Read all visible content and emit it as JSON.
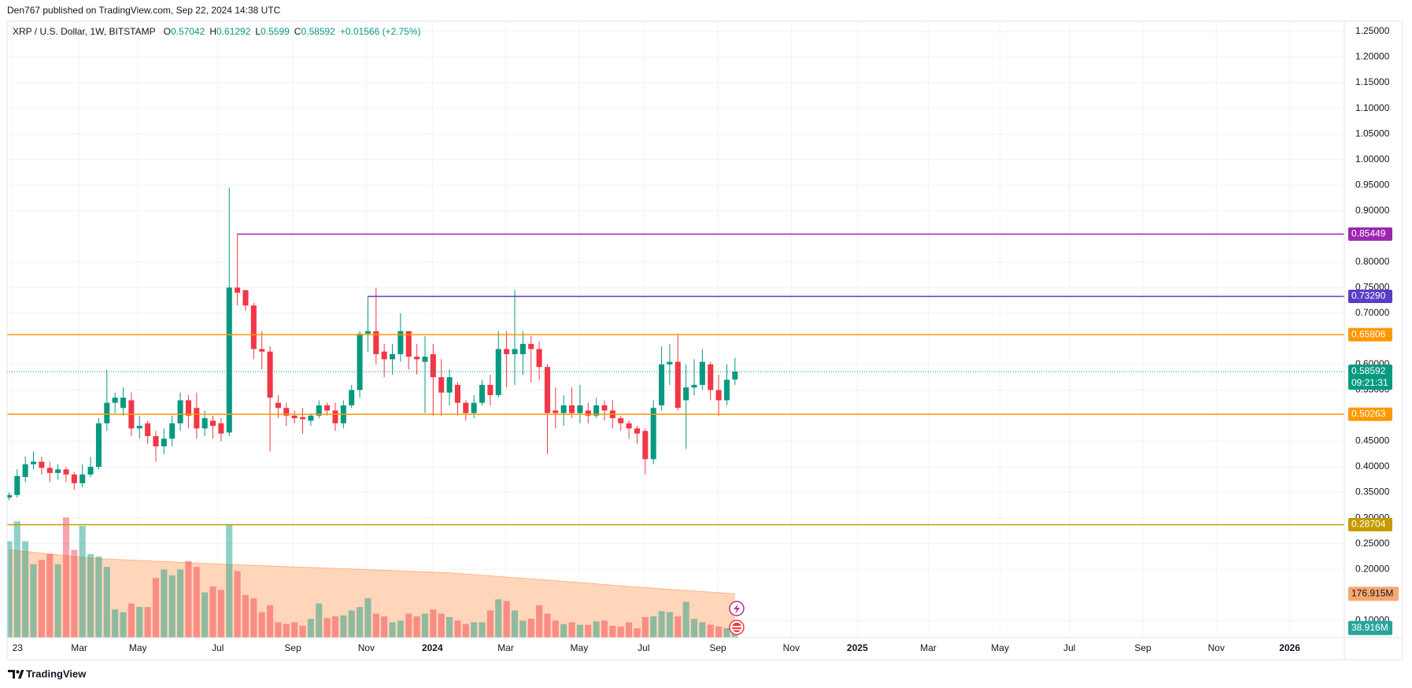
{
  "header": {
    "published": "Den767 published on TradingView.com, Sep 22, 2024 14:38 UTC"
  },
  "legend": {
    "symbol": "XRP / U.S. Dollar, 1W, BITSTAMP",
    "letters": [
      "O",
      "H",
      "L",
      "C"
    ],
    "change": "+0.01566 (+2.75%)"
  },
  "footer": {
    "brand": "TradingView"
  },
  "chart_data": {
    "type": "candlestick",
    "up_color": "#089981",
    "down_color": "#f23645",
    "grid": true,
    "xlim": [
      -0.235,
      163.7
    ],
    "xticks": [
      {
        "value": 0.4,
        "label": "23"
      },
      {
        "value": 8.6,
        "label": "Mar"
      },
      {
        "value": 15.8,
        "label": "May"
      },
      {
        "value": 25.6,
        "label": "Jul"
      },
      {
        "value": 34.8,
        "label": "Sep"
      },
      {
        "value": 43.8,
        "label": "Nov"
      },
      {
        "value": 51.9,
        "label": "2024"
      },
      {
        "value": 60.9,
        "label": "Mar"
      },
      {
        "value": 69.9,
        "label": "May"
      },
      {
        "value": 77.8,
        "label": "Jul"
      },
      {
        "value": 86.9,
        "label": "Sep"
      },
      {
        "value": 95.9,
        "label": "Nov"
      },
      {
        "value": 104.0,
        "label": "2025"
      },
      {
        "value": 112.7,
        "label": "Mar"
      },
      {
        "value": 121.5,
        "label": "May"
      },
      {
        "value": 130.0,
        "label": "Jul"
      },
      {
        "value": 139.0,
        "label": "Sep"
      },
      {
        "value": 148.0,
        "label": "Nov"
      },
      {
        "value": 157.0,
        "label": "2026"
      }
    ],
    "ylim": [
      0.0665,
      1.27
    ],
    "yticks": [
      {
        "value": 1.25,
        "label": "1.25000"
      },
      {
        "value": 1.2,
        "label": "1.20000"
      },
      {
        "value": 1.15,
        "label": "1.15000"
      },
      {
        "value": 1.1,
        "label": "1.10000"
      },
      {
        "value": 1.05,
        "label": "1.05000"
      },
      {
        "value": 1.0,
        "label": "1.00000"
      },
      {
        "value": 0.95,
        "label": "0.95000"
      },
      {
        "value": 0.9,
        "label": "0.90000"
      },
      {
        "value": 0.8,
        "label": "0.80000"
      },
      {
        "value": 0.75,
        "label": "0.75000"
      },
      {
        "value": 0.7,
        "label": "0.70000"
      },
      {
        "value": 0.6,
        "label": "0.60000"
      },
      {
        "value": 0.55,
        "label": "0.55000"
      },
      {
        "value": 0.45,
        "label": "0.45000"
      },
      {
        "value": 0.4,
        "label": "0.40000"
      },
      {
        "value": 0.35,
        "label": "0.35000"
      },
      {
        "value": 0.3,
        "label": "0.30000"
      },
      {
        "value": 0.25,
        "label": "0.25000"
      },
      {
        "value": 0.2,
        "label": "0.20000"
      },
      {
        "value": 0.1,
        "label": "0.10000"
      }
    ],
    "open": [
      0.34,
      0.345,
      0.38,
      0.405,
      0.41,
      0.398,
      0.388,
      0.395,
      0.385,
      0.368,
      0.385,
      0.4,
      0.485,
      0.525,
      0.515,
      0.53,
      0.475,
      0.485,
      0.46,
      0.44,
      0.455,
      0.485,
      0.53,
      0.515,
      0.475,
      0.49,
      0.485,
      0.467,
      0.75,
      0.745,
      0.715,
      0.63,
      0.625,
      0.525,
      0.515,
      0.5,
      0.497,
      0.49,
      0.5,
      0.52,
      0.51,
      0.485,
      0.52,
      0.55,
      0.66,
      0.665,
      0.625,
      0.61,
      0.62,
      0.665,
      0.615,
      0.605,
      0.62,
      0.575,
      0.545,
      0.56,
      0.525,
      0.505,
      0.525,
      0.56,
      0.54,
      0.63,
      0.62,
      0.62,
      0.64,
      0.63,
      0.595,
      0.51,
      0.505,
      0.52,
      0.505,
      0.51,
      0.5,
      0.52,
      0.51,
      0.495,
      0.485,
      0.475,
      0.47,
      0.415,
      0.52,
      0.6,
      0.605,
      0.53,
      0.555,
      0.56,
      0.6,
      0.55,
      0.53,
      0.57042
    ],
    "high": [
      0.35,
      0.395,
      0.42,
      0.43,
      0.42,
      0.41,
      0.405,
      0.4,
      0.39,
      0.405,
      0.42,
      0.495,
      0.59,
      0.545,
      0.555,
      0.545,
      0.5,
      0.49,
      0.47,
      0.475,
      0.5,
      0.545,
      0.54,
      0.545,
      0.51,
      0.5,
      0.495,
      0.945,
      0.855,
      0.745,
      0.72,
      0.665,
      0.635,
      0.54,
      0.525,
      0.51,
      0.515,
      0.505,
      0.53,
      0.525,
      0.525,
      0.53,
      0.56,
      0.665,
      0.733,
      0.75,
      0.64,
      0.64,
      0.7,
      0.66,
      0.64,
      0.655,
      0.64,
      0.61,
      0.59,
      0.565,
      0.53,
      0.54,
      0.57,
      0.58,
      0.665,
      0.665,
      0.745,
      0.665,
      0.655,
      0.645,
      0.6,
      0.555,
      0.54,
      0.555,
      0.56,
      0.525,
      0.535,
      0.53,
      0.53,
      0.5,
      0.49,
      0.48,
      0.475,
      0.53,
      0.635,
      0.64,
      0.66,
      0.6,
      0.61,
      0.63,
      0.605,
      0.58,
      0.6,
      0.61292
    ],
    "low": [
      0.335,
      0.34,
      0.37,
      0.395,
      0.385,
      0.37,
      0.375,
      0.37,
      0.355,
      0.36,
      0.38,
      0.395,
      0.47,
      0.505,
      0.5,
      0.46,
      0.455,
      0.445,
      0.41,
      0.425,
      0.44,
      0.47,
      0.475,
      0.455,
      0.46,
      0.455,
      0.45,
      0.46,
      0.715,
      0.705,
      0.61,
      0.59,
      0.43,
      0.495,
      0.48,
      0.485,
      0.465,
      0.48,
      0.495,
      0.5,
      0.47,
      0.475,
      0.515,
      0.535,
      0.625,
      0.6,
      0.575,
      0.58,
      0.605,
      0.59,
      0.58,
      0.505,
      0.5,
      0.5,
      0.52,
      0.5,
      0.49,
      0.495,
      0.52,
      0.52,
      0.535,
      0.555,
      0.56,
      0.58,
      0.565,
      0.57,
      0.425,
      0.475,
      0.48,
      0.495,
      0.485,
      0.485,
      0.495,
      0.49,
      0.475,
      0.47,
      0.455,
      0.445,
      0.385,
      0.405,
      0.51,
      0.56,
      0.51,
      0.435,
      0.54,
      0.55,
      0.53,
      0.5,
      0.52,
      0.5599
    ],
    "close": [
      0.345,
      0.382,
      0.405,
      0.41,
      0.398,
      0.388,
      0.395,
      0.385,
      0.368,
      0.385,
      0.4,
      0.485,
      0.525,
      0.535,
      0.535,
      0.475,
      0.48,
      0.46,
      0.44,
      0.455,
      0.485,
      0.53,
      0.5,
      0.475,
      0.495,
      0.48,
      0.465,
      0.75,
      0.74,
      0.715,
      0.63,
      0.625,
      0.535,
      0.515,
      0.5,
      0.495,
      0.493,
      0.5,
      0.52,
      0.51,
      0.485,
      0.52,
      0.55,
      0.66,
      0.665,
      0.62,
      0.61,
      0.62,
      0.665,
      0.615,
      0.61,
      0.615,
      0.575,
      0.545,
      0.575,
      0.525,
      0.505,
      0.525,
      0.56,
      0.54,
      0.63,
      0.62,
      0.63,
      0.64,
      0.63,
      0.595,
      0.505,
      0.505,
      0.52,
      0.505,
      0.52,
      0.5,
      0.52,
      0.51,
      0.495,
      0.485,
      0.475,
      0.465,
      0.415,
      0.515,
      0.6,
      0.605,
      0.515,
      0.555,
      0.56,
      0.605,
      0.55,
      0.53,
      0.57,
      0.58592
    ],
    "volume": [
      390,
      470,
      390,
      297,
      314,
      338,
      297,
      486,
      355,
      452,
      338,
      328,
      286,
      114,
      103,
      138,
      124,
      124,
      241,
      276,
      252,
      276,
      310,
      286,
      183,
      207,
      193,
      455,
      269,
      172,
      159,
      103,
      131,
      62,
      55,
      62,
      48,
      76,
      138,
      79,
      86,
      90,
      110,
      124,
      159,
      97,
      86,
      62,
      69,
      97,
      86,
      97,
      114,
      97,
      83,
      69,
      55,
      62,
      62,
      110,
      155,
      148,
      110,
      69,
      76,
      131,
      97,
      69,
      55,
      62,
      52,
      52,
      66,
      69,
      48,
      45,
      62,
      38,
      83,
      86,
      107,
      103,
      86,
      145,
      76,
      62,
      52,
      45,
      38,
      38.916
    ],
    "volume_last_label": "38.916M",
    "volume_ma": {
      "x": [
        0,
        10,
        26,
        43,
        54,
        65,
        76,
        89
      ],
      "values": [
        355,
        321,
        297,
        276,
        262,
        235,
        207,
        176.915
      ],
      "value_label": "176.915M"
    },
    "countdown": "09:21:31",
    "levels": [
      {
        "value": 0.85449,
        "color": "#9c27b0",
        "start": 28
      },
      {
        "value": 0.7329,
        "label": "0.73290",
        "color": "#5b3cc4",
        "start": 44
      },
      {
        "value": 0.65806,
        "color": "#ff9800"
      },
      {
        "value": 0.50263,
        "color": "#ff9800"
      },
      {
        "value": 0.28704,
        "color": "#c79a00"
      }
    ]
  }
}
